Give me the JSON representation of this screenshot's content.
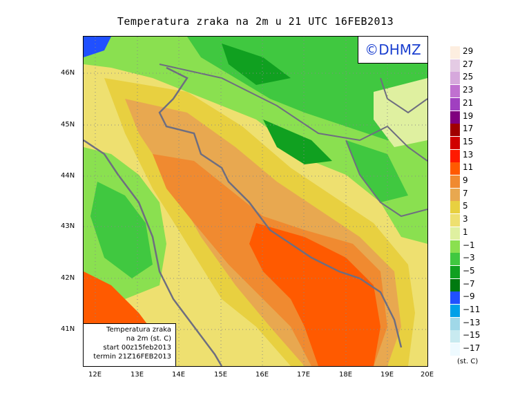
{
  "title": "Temperatura zraka na 2m u 21 UTC 16FEB2013",
  "logo_text": "©DHMZ",
  "info": {
    "line1": "Temperatura zraka",
    "line2": "na 2m (st. C)",
    "line3": "start 00z15feb2013",
    "line4": "termin 21Z16FEB2013"
  },
  "axes": {
    "lat_labels": [
      "46N",
      "45N",
      "44N",
      "43N",
      "42N",
      "41N"
    ],
    "lon_labels": [
      "12E",
      "13E",
      "14E",
      "15E",
      "16E",
      "17E",
      "18E",
      "19E",
      "20E"
    ]
  },
  "legend": {
    "unit": "(st. C)",
    "labels": [
      "29",
      "27",
      "25",
      "23",
      "21",
      "19",
      "17",
      "15",
      "13",
      "11",
      "9",
      "7",
      "5",
      "3",
      "1",
      "−1",
      "−3",
      "−5",
      "−7",
      "−9",
      "−11",
      "−13",
      "−15",
      "−17"
    ],
    "colors": [
      "#fdeee0",
      "#e4cbe4",
      "#d6a8dc",
      "#c070d0",
      "#a040c0",
      "#80007f",
      "#a00000",
      "#d00000",
      "#ff1a00",
      "#ff5a00",
      "#f08a30",
      "#e8a850",
      "#e8d040",
      "#eee070",
      "#dff0a0",
      "#8ae050",
      "#40c840",
      "#10a020",
      "#007a10",
      "#2050ff",
      "#00a0e8",
      "#a0d8e8",
      "#c8eaf0",
      "#eefaff"
    ]
  },
  "colors": {
    "sea_warm": "#ff5a00",
    "land_green": "#40c840",
    "outline": "#6e6e80",
    "logo_blue": "#1a3fcf"
  }
}
